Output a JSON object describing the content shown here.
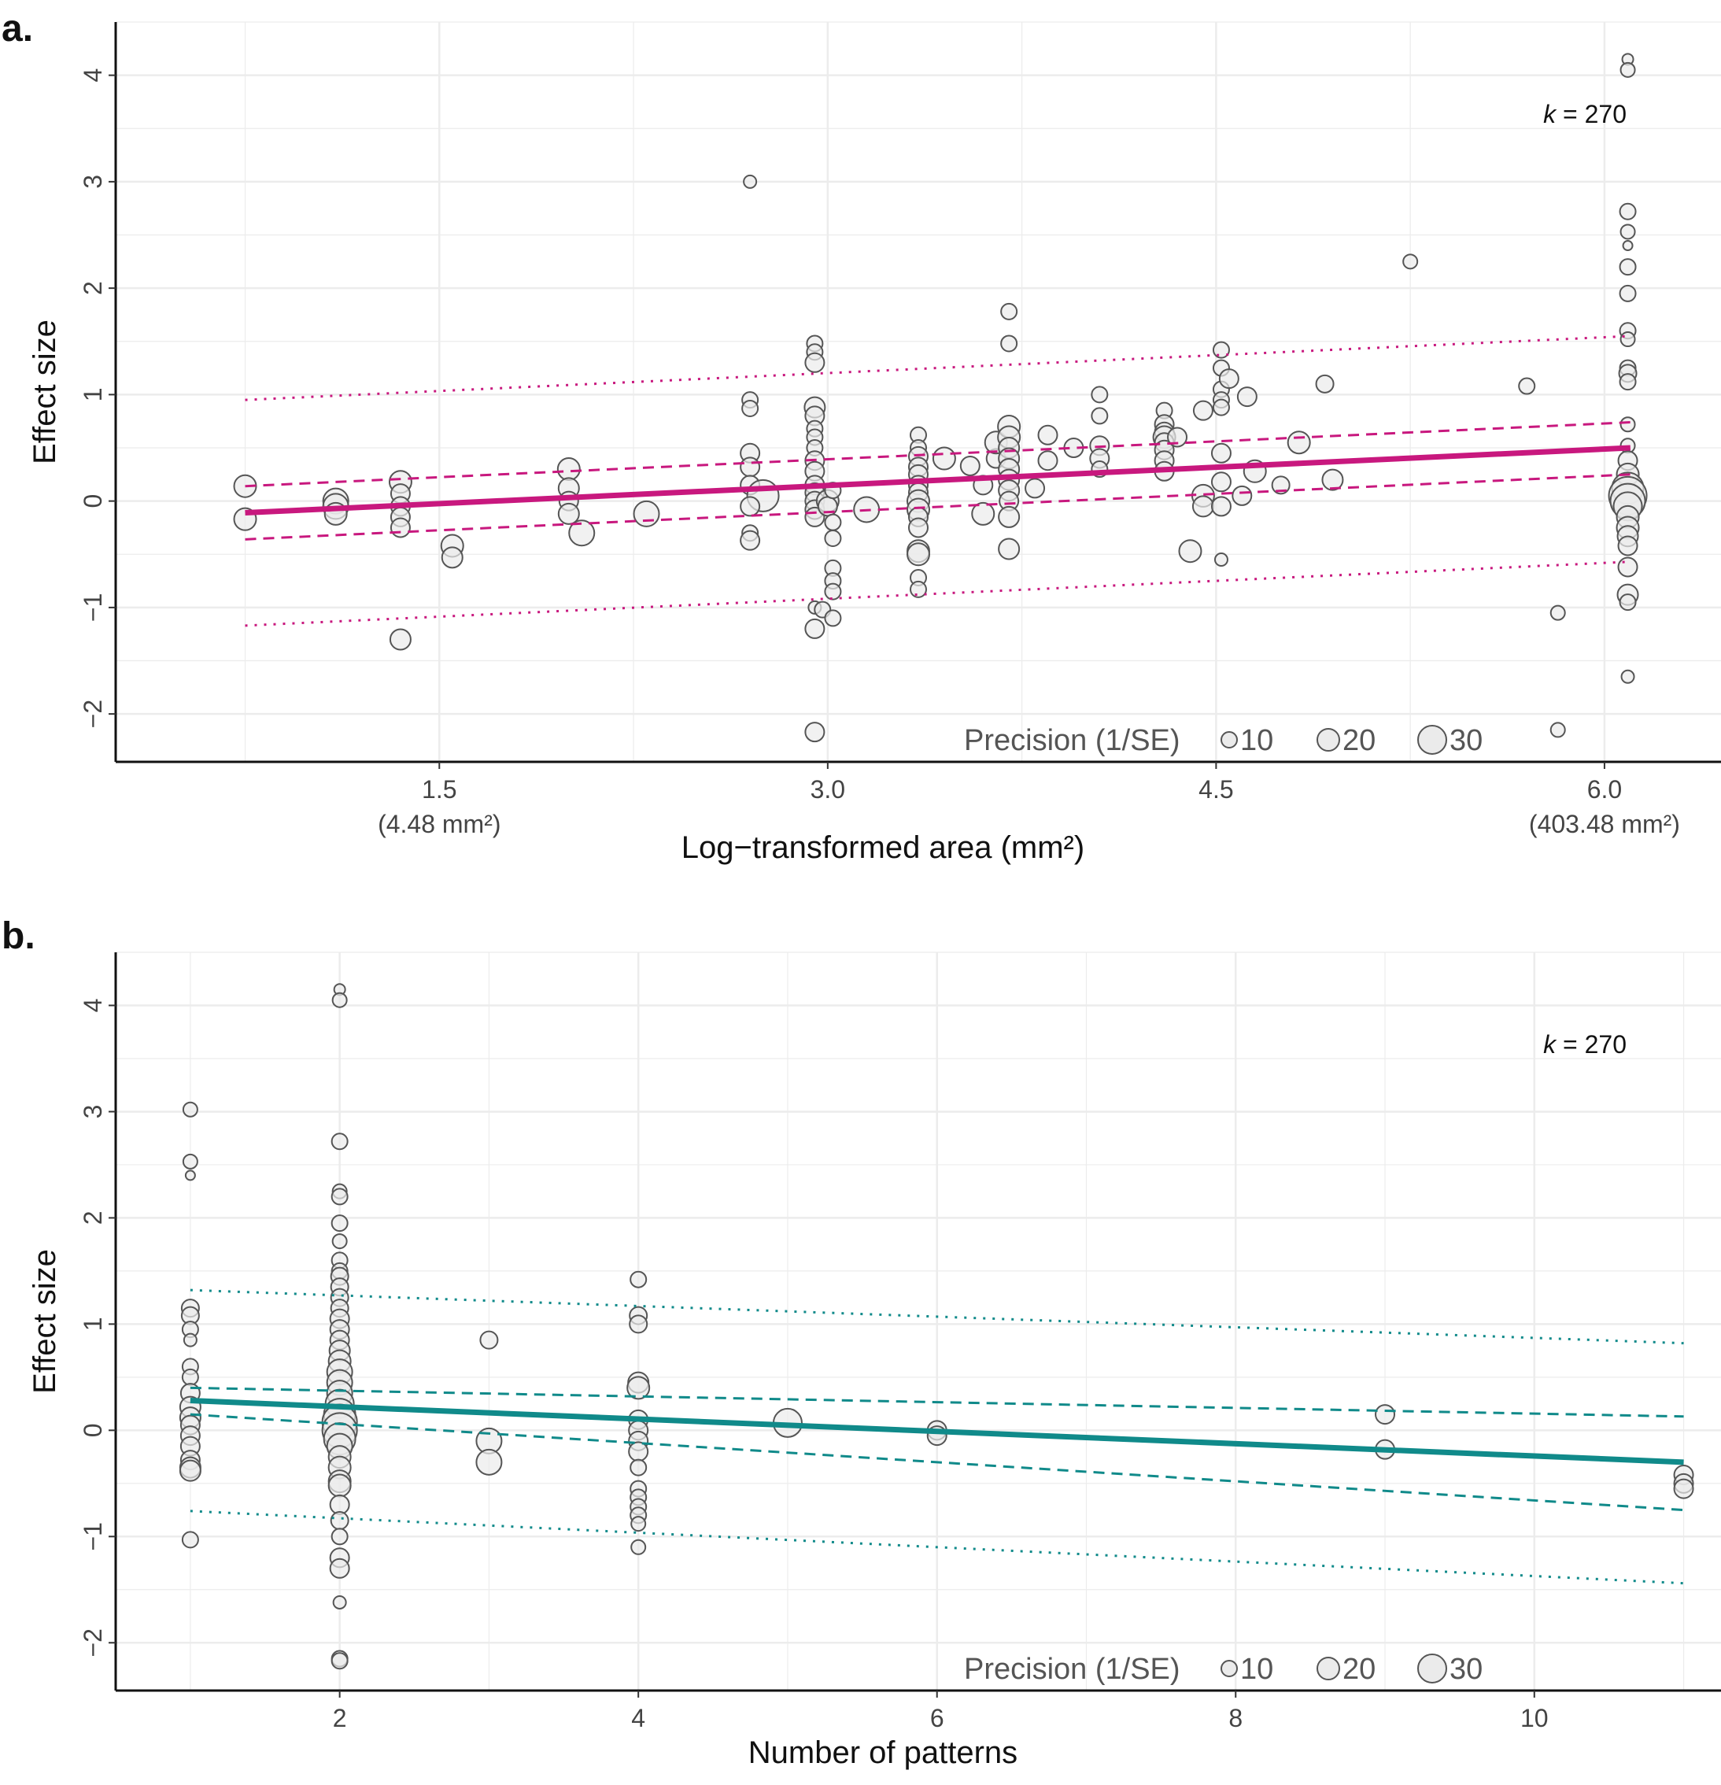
{
  "chart_data": [
    {
      "panel": "a.",
      "type": "scatter",
      "xlabel": "Log−transformed area (mm²)",
      "ylabel": "Effect size",
      "xlim": [
        0.25,
        6.45
      ],
      "ylim": [
        -2.45,
        4.5
      ],
      "x_ticks": [
        {
          "value": 1.5,
          "label": "1.5",
          "sublabel": "(4.48 mm²)"
        },
        {
          "value": 3.0,
          "label": "3.0",
          "sublabel": ""
        },
        {
          "value": 4.5,
          "label": "4.5",
          "sublabel": ""
        },
        {
          "value": 6.0,
          "label": "6.0",
          "sublabel": "(403.48 mm²)"
        }
      ],
      "y_ticks": [
        -2,
        -1,
        0,
        1,
        2,
        3,
        4
      ],
      "grid": true,
      "annotation_k": "k",
      "annotation_value": "= 270",
      "line_color": "#c8187e",
      "regression": {
        "x": [
          0.75,
          6.1
        ],
        "fit": [
          -0.11,
          0.5
        ],
        "ci_upper": [
          0.14,
          0.74
        ],
        "ci_lower": [
          -0.36,
          0.25
        ],
        "pi_upper": [
          0.95,
          1.55
        ],
        "pi_lower": [
          -1.17,
          -0.57
        ]
      },
      "points": [
        [
          0.75,
          0.14,
          14
        ],
        [
          0.75,
          -0.17,
          14
        ],
        [
          1.1,
          0.0,
          16
        ],
        [
          1.1,
          -0.05,
          16
        ],
        [
          1.1,
          -0.12,
          14
        ],
        [
          1.35,
          0.18,
          14
        ],
        [
          1.35,
          0.07,
          12
        ],
        [
          1.35,
          -0.05,
          12
        ],
        [
          1.35,
          -0.15,
          12
        ],
        [
          1.35,
          -0.25,
          12
        ],
        [
          1.35,
          -1.3,
          13
        ],
        [
          1.55,
          -0.42,
          14
        ],
        [
          1.55,
          -0.53,
          13
        ],
        [
          2.0,
          0.3,
          14
        ],
        [
          2.0,
          0.12,
          13
        ],
        [
          2.0,
          0.0,
          12
        ],
        [
          2.0,
          -0.12,
          13
        ],
        [
          2.05,
          -0.3,
          16
        ],
        [
          2.3,
          -0.12,
          16
        ],
        [
          2.7,
          0.95,
          10
        ],
        [
          2.7,
          0.87,
          10
        ],
        [
          2.7,
          0.45,
          12
        ],
        [
          2.7,
          0.32,
          12
        ],
        [
          2.7,
          0.15,
          12
        ],
        [
          2.75,
          0.05,
          20
        ],
        [
          2.7,
          -0.05,
          12
        ],
        [
          2.7,
          -0.3,
          10
        ],
        [
          2.7,
          -0.37,
          12
        ],
        [
          2.7,
          3.0,
          8
        ],
        [
          2.95,
          1.48,
          10
        ],
        [
          2.95,
          1.4,
          10
        ],
        [
          2.95,
          1.3,
          12
        ],
        [
          2.95,
          0.88,
          13
        ],
        [
          2.95,
          0.8,
          12
        ],
        [
          2.95,
          0.68,
          10
        ],
        [
          2.95,
          0.6,
          10
        ],
        [
          2.95,
          0.5,
          10
        ],
        [
          2.95,
          0.38,
          12
        ],
        [
          2.95,
          0.28,
          12
        ],
        [
          2.95,
          0.15,
          12
        ],
        [
          2.95,
          0.08,
          12
        ],
        [
          2.95,
          0.0,
          12
        ],
        [
          2.95,
          -0.08,
          12
        ],
        [
          2.95,
          -0.15,
          12
        ],
        [
          2.95,
          -1.0,
          8
        ],
        [
          2.95,
          -1.2,
          12
        ],
        [
          2.95,
          -2.17,
          12
        ],
        [
          3.0,
          0.0,
          14
        ],
        [
          3.0,
          -0.05,
          12
        ],
        [
          3.02,
          0.1,
          10
        ],
        [
          3.02,
          -0.2,
          10
        ],
        [
          3.02,
          -0.35,
          10
        ],
        [
          3.02,
          -0.63,
          10
        ],
        [
          3.02,
          -0.75,
          10
        ],
        [
          3.02,
          -0.85,
          10
        ],
        [
          2.98,
          -1.02,
          10
        ],
        [
          3.02,
          -1.1,
          10
        ],
        [
          3.15,
          -0.08,
          16
        ],
        [
          3.35,
          0.62,
          10
        ],
        [
          3.35,
          0.5,
          10
        ],
        [
          3.35,
          0.42,
          12
        ],
        [
          3.35,
          0.32,
          12
        ],
        [
          3.35,
          0.25,
          12
        ],
        [
          3.35,
          0.15,
          12
        ],
        [
          3.35,
          0.08,
          12
        ],
        [
          3.35,
          0.0,
          14
        ],
        [
          3.35,
          -0.08,
          14
        ],
        [
          3.35,
          -0.15,
          12
        ],
        [
          3.35,
          -0.25,
          12
        ],
        [
          3.35,
          -0.47,
          14
        ],
        [
          3.35,
          -0.5,
          14
        ],
        [
          3.35,
          -0.72,
          10
        ],
        [
          3.35,
          -0.83,
          10
        ],
        [
          3.45,
          0.4,
          14
        ],
        [
          3.55,
          0.33,
          12
        ],
        [
          3.6,
          0.15,
          12
        ],
        [
          3.6,
          -0.12,
          14
        ],
        [
          3.65,
          0.4,
          12
        ],
        [
          3.65,
          0.55,
          14
        ],
        [
          3.7,
          1.78,
          10
        ],
        [
          3.7,
          1.48,
          10
        ],
        [
          3.7,
          0.7,
          14
        ],
        [
          3.7,
          0.6,
          14
        ],
        [
          3.7,
          0.5,
          13
        ],
        [
          3.7,
          0.4,
          13
        ],
        [
          3.7,
          0.3,
          13
        ],
        [
          3.7,
          0.2,
          13
        ],
        [
          3.7,
          0.1,
          13
        ],
        [
          3.7,
          0.0,
          12
        ],
        [
          3.7,
          -0.15,
          13
        ],
        [
          3.7,
          -0.45,
          13
        ],
        [
          3.8,
          0.12,
          12
        ],
        [
          3.85,
          0.62,
          12
        ],
        [
          3.85,
          0.38,
          12
        ],
        [
          3.95,
          0.5,
          12
        ],
        [
          4.05,
          1.0,
          10
        ],
        [
          4.05,
          0.8,
          10
        ],
        [
          4.05,
          0.52,
          12
        ],
        [
          4.05,
          0.4,
          12
        ],
        [
          4.05,
          0.3,
          10
        ],
        [
          4.3,
          0.85,
          10
        ],
        [
          4.3,
          0.72,
          12
        ],
        [
          4.3,
          0.65,
          12
        ],
        [
          4.3,
          0.6,
          14
        ],
        [
          4.3,
          0.55,
          12
        ],
        [
          4.3,
          0.48,
          12
        ],
        [
          4.3,
          0.38,
          12
        ],
        [
          4.3,
          0.28,
          12
        ],
        [
          4.35,
          0.6,
          12
        ],
        [
          4.4,
          -0.47,
          14
        ],
        [
          4.45,
          0.85,
          12
        ],
        [
          4.45,
          0.05,
          14
        ],
        [
          4.45,
          -0.05,
          13
        ],
        [
          4.52,
          1.42,
          10
        ],
        [
          4.52,
          1.25,
          10
        ],
        [
          4.52,
          1.05,
          10
        ],
        [
          4.52,
          0.95,
          10
        ],
        [
          4.52,
          0.88,
          10
        ],
        [
          4.52,
          0.45,
          12
        ],
        [
          4.52,
          0.18,
          12
        ],
        [
          4.52,
          -0.05,
          12
        ],
        [
          4.52,
          -0.55,
          8
        ],
        [
          4.55,
          1.15,
          12
        ],
        [
          4.62,
          0.98,
          12
        ],
        [
          4.6,
          0.05,
          12
        ],
        [
          4.65,
          0.28,
          14
        ],
        [
          4.75,
          0.15,
          11
        ],
        [
          4.82,
          0.55,
          14
        ],
        [
          4.92,
          1.1,
          11
        ],
        [
          4.95,
          0.2,
          13
        ],
        [
          5.25,
          2.25,
          9
        ],
        [
          5.7,
          1.08,
          10
        ],
        [
          6.09,
          4.15,
          7
        ],
        [
          6.09,
          4.05,
          9
        ],
        [
          6.09,
          2.72,
          10
        ],
        [
          6.09,
          2.53,
          9
        ],
        [
          6.09,
          2.4,
          6
        ],
        [
          6.09,
          2.2,
          10
        ],
        [
          6.09,
          1.95,
          10
        ],
        [
          6.09,
          1.6,
          10
        ],
        [
          6.09,
          1.52,
          9
        ],
        [
          6.09,
          1.25,
          10
        ],
        [
          6.09,
          1.2,
          11
        ],
        [
          6.09,
          1.12,
          10
        ],
        [
          6.09,
          0.72,
          9
        ],
        [
          6.09,
          0.52,
          9
        ],
        [
          6.09,
          0.38,
          12
        ],
        [
          6.09,
          0.25,
          14
        ],
        [
          6.09,
          0.12,
          20
        ],
        [
          6.09,
          0.05,
          24
        ],
        [
          6.09,
          0.0,
          22
        ],
        [
          6.09,
          -0.05,
          18
        ],
        [
          6.09,
          -0.15,
          14
        ],
        [
          6.09,
          -0.25,
          14
        ],
        [
          6.09,
          -0.33,
          13
        ],
        [
          6.09,
          -0.42,
          12
        ],
        [
          6.09,
          -0.62,
          12
        ],
        [
          6.09,
          -0.88,
          13
        ],
        [
          6.09,
          -0.95,
          10
        ],
        [
          6.09,
          -1.65,
          8
        ],
        [
          5.82,
          -1.05,
          9
        ],
        [
          5.82,
          -2.15,
          9
        ]
      ]
    },
    {
      "panel": "b.",
      "type": "scatter",
      "xlabel": "Number of patterns",
      "ylabel": "Effect size",
      "xlim": [
        0.5,
        11.25
      ],
      "ylim": [
        -2.45,
        4.5
      ],
      "x_ticks": [
        {
          "value": 2,
          "label": "2",
          "sublabel": ""
        },
        {
          "value": 4,
          "label": "4",
          "sublabel": ""
        },
        {
          "value": 6,
          "label": "6",
          "sublabel": ""
        },
        {
          "value": 8,
          "label": "8",
          "sublabel": ""
        },
        {
          "value": 10,
          "label": "10",
          "sublabel": ""
        }
      ],
      "y_ticks": [
        -2,
        -1,
        0,
        1,
        2,
        3,
        4
      ],
      "grid": true,
      "annotation_k": "k",
      "annotation_value": "= 270",
      "line_color": "#108a8a",
      "regression": {
        "x": [
          1,
          11
        ],
        "fit": [
          0.28,
          -0.3
        ],
        "ci_upper": [
          0.4,
          0.13
        ],
        "ci_lower": [
          0.15,
          -0.75
        ],
        "pi_upper": [
          1.32,
          0.82
        ],
        "pi_lower": [
          -0.76,
          -1.44
        ]
      },
      "points": [
        [
          1,
          3.02,
          9
        ],
        [
          1,
          2.53,
          9
        ],
        [
          1,
          2.4,
          6
        ],
        [
          1,
          1.15,
          11
        ],
        [
          1,
          1.08,
          11
        ],
        [
          1,
          0.95,
          10
        ],
        [
          1,
          0.85,
          8
        ],
        [
          1,
          0.6,
          10
        ],
        [
          1,
          0.5,
          10
        ],
        [
          1,
          0.35,
          12
        ],
        [
          1,
          0.22,
          13
        ],
        [
          1,
          0.12,
          13
        ],
        [
          1,
          0.05,
          12
        ],
        [
          1,
          -0.05,
          12
        ],
        [
          1,
          -0.15,
          12
        ],
        [
          1,
          -0.28,
          12
        ],
        [
          1,
          -0.35,
          13
        ],
        [
          1,
          -0.38,
          13
        ],
        [
          1,
          -1.03,
          10
        ],
        [
          2,
          4.15,
          7
        ],
        [
          2,
          4.05,
          9
        ],
        [
          2,
          2.72,
          10
        ],
        [
          2,
          2.25,
          9
        ],
        [
          2,
          2.2,
          10
        ],
        [
          2,
          1.95,
          10
        ],
        [
          2,
          1.78,
          9
        ],
        [
          2,
          1.6,
          10
        ],
        [
          2,
          1.5,
          10
        ],
        [
          2,
          1.45,
          11
        ],
        [
          2,
          1.35,
          11
        ],
        [
          2,
          1.25,
          11
        ],
        [
          2,
          1.15,
          11
        ],
        [
          2,
          1.05,
          12
        ],
        [
          2,
          0.95,
          12
        ],
        [
          2,
          0.85,
          12
        ],
        [
          2,
          0.75,
          13
        ],
        [
          2,
          0.65,
          14
        ],
        [
          2,
          0.55,
          16
        ],
        [
          2,
          0.45,
          16
        ],
        [
          2,
          0.35,
          16
        ],
        [
          2,
          0.25,
          18
        ],
        [
          2,
          0.15,
          20
        ],
        [
          2,
          0.08,
          22
        ],
        [
          2,
          0.0,
          22
        ],
        [
          2,
          -0.08,
          20
        ],
        [
          2,
          -0.15,
          16
        ],
        [
          2,
          -0.25,
          14
        ],
        [
          2,
          -0.35,
          14
        ],
        [
          2,
          -0.48,
          14
        ],
        [
          2,
          -0.52,
          14
        ],
        [
          2,
          -0.7,
          12
        ],
        [
          2,
          -0.85,
          11
        ],
        [
          2,
          -1.0,
          10
        ],
        [
          2,
          -1.2,
          12
        ],
        [
          2,
          -1.3,
          12
        ],
        [
          2,
          -1.62,
          8
        ],
        [
          2,
          -2.15,
          10
        ],
        [
          2,
          -2.17,
          10
        ],
        [
          3,
          0.85,
          11
        ],
        [
          3,
          -0.1,
          16
        ],
        [
          3,
          -0.3,
          16
        ],
        [
          4,
          1.42,
          10
        ],
        [
          4,
          1.08,
          11
        ],
        [
          4,
          1.0,
          11
        ],
        [
          4,
          0.45,
          13
        ],
        [
          4,
          0.4,
          14
        ],
        [
          4,
          0.1,
          12
        ],
        [
          4,
          0.0,
          12
        ],
        [
          4,
          -0.1,
          12
        ],
        [
          4,
          -0.2,
          12
        ],
        [
          4,
          -0.35,
          10
        ],
        [
          4,
          -0.55,
          10
        ],
        [
          4,
          -0.63,
          10
        ],
        [
          4,
          -0.72,
          10
        ],
        [
          4,
          -0.8,
          10
        ],
        [
          4,
          -0.88,
          9
        ],
        [
          4,
          -1.1,
          9
        ],
        [
          5,
          0.07,
          18
        ],
        [
          6,
          0.0,
          12
        ],
        [
          6,
          -0.05,
          12
        ],
        [
          9,
          0.15,
          12
        ],
        [
          9,
          -0.18,
          12
        ],
        [
          11,
          -0.42,
          12
        ],
        [
          11,
          -0.5,
          12
        ],
        [
          11,
          -0.55,
          12
        ]
      ]
    }
  ],
  "legend": {
    "title": "Precision (1/SE)",
    "entries": [
      {
        "label": "10",
        "size": 10
      },
      {
        "label": "20",
        "size": 14
      },
      {
        "label": "30",
        "size": 18
      }
    ]
  },
  "colors": {
    "point_fill": "#ebebeb",
    "point_stroke": "#555555",
    "grid": "#e6e6e6"
  }
}
